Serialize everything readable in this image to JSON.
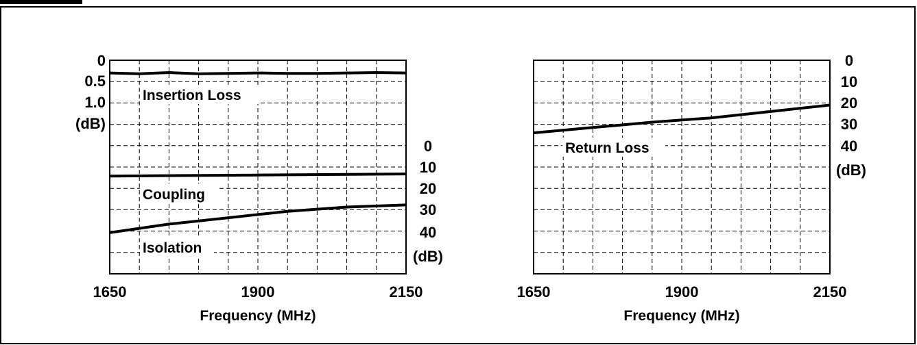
{
  "chart_data": [
    {
      "type": "line",
      "xlabel": "Frequency (MHz)",
      "xlim": [
        1650,
        2150
      ],
      "x_ticks": [
        "1650",
        "1900",
        "2150"
      ],
      "grid": true,
      "left_axis": {
        "range": [
          0,
          1.5
        ],
        "reversed": true,
        "tick_labels": [
          "0",
          "0.5",
          "1.0",
          "(dB)"
        ]
      },
      "right_axis": {
        "range": [
          0,
          50
        ],
        "reversed": true,
        "tick_labels": [
          "0",
          "10",
          "20",
          "30",
          "40",
          "(dB)"
        ]
      },
      "series": [
        {
          "name": "Insertion Loss",
          "axis": "left",
          "x": [
            1650,
            1700,
            1750,
            1800,
            1850,
            1900,
            1950,
            2000,
            2050,
            2100,
            2150
          ],
          "y": [
            0.3,
            0.32,
            0.29,
            0.32,
            0.31,
            0.3,
            0.31,
            0.31,
            0.3,
            0.29,
            0.3
          ]
        },
        {
          "name": "Coupling",
          "axis": "right",
          "x": [
            1650,
            1900,
            2150
          ],
          "y": [
            14.5,
            14,
            13.5
          ]
        },
        {
          "name": "Isolation",
          "axis": "right",
          "x": [
            1650,
            1750,
            1850,
            1950,
            2050,
            2150
          ],
          "y": [
            41,
            37,
            34,
            31,
            29,
            28
          ]
        }
      ]
    },
    {
      "type": "line",
      "xlabel": "Frequency (MHz)",
      "xlim": [
        1650,
        2150
      ],
      "x_ticks": [
        "1650",
        "1900",
        "2150"
      ],
      "grid": true,
      "right_axis": {
        "range": [
          0,
          50
        ],
        "reversed": true,
        "tick_labels": [
          "0",
          "10",
          "20",
          "30",
          "40",
          "(dB)"
        ]
      },
      "series": [
        {
          "name": "Return Loss",
          "axis": "right",
          "x": [
            1650,
            1750,
            1850,
            1950,
            2050,
            2150
          ],
          "y": [
            34,
            31.5,
            29,
            27,
            24,
            21
          ]
        }
      ]
    }
  ]
}
